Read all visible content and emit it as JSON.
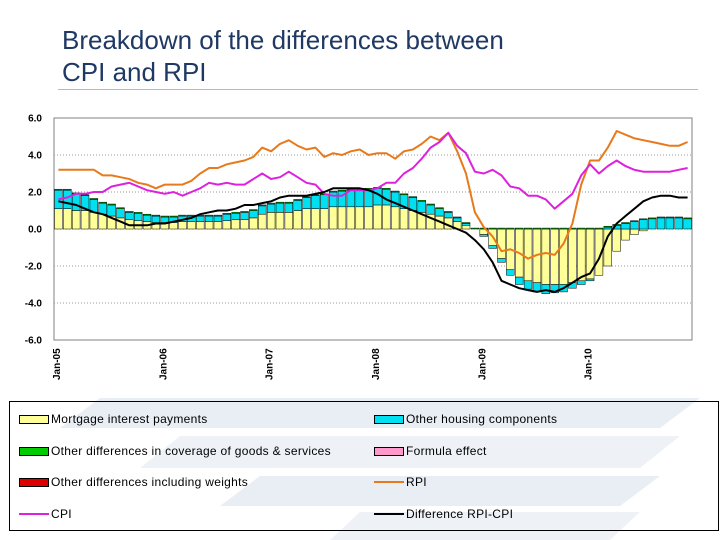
{
  "title": "Breakdown of the differences between CPI and RPI",
  "title_lines": [
    "Breakdown of the differences between",
    "CPI and RPI"
  ],
  "colors": {
    "title": "#1f3864",
    "mortgage": "#ffff99",
    "housing": "#00e0f0",
    "coverage": "#00cc00",
    "formula": "#ff99cc",
    "weights": "#dd0000",
    "rpi": "#e87a1c",
    "cpi": "#dd22dd",
    "diff": "#000000"
  },
  "chart_data": {
    "type": "bar",
    "stacked": true,
    "ylim": [
      -6.0,
      6.0
    ],
    "yticks": [
      "6.0",
      "4.0",
      "2.0",
      "0.0",
      "-2.0",
      "-4.0",
      "-6.0"
    ],
    "ytick_values": [
      6,
      4,
      2,
      0,
      -2,
      -4,
      -6
    ],
    "grid": "dotted horizontal",
    "xtick_labels": [
      "Jan-05",
      "Jan-06",
      "Jan-07",
      "Jan-08",
      "Jan-09",
      "Jan-10"
    ],
    "xtick_months": [
      0,
      12,
      24,
      36,
      48,
      60
    ],
    "months": 72,
    "bar_series": [
      {
        "name": "Mortgage interest payments",
        "key": "mortgage",
        "values": [
          1.1,
          1.1,
          1.0,
          1.0,
          0.9,
          0.8,
          0.7,
          0.6,
          0.5,
          0.45,
          0.4,
          0.35,
          0.35,
          0.35,
          0.4,
          0.4,
          0.4,
          0.4,
          0.4,
          0.45,
          0.5,
          0.5,
          0.6,
          0.8,
          0.9,
          0.9,
          0.9,
          1.0,
          1.1,
          1.1,
          1.1,
          1.2,
          1.2,
          1.2,
          1.2,
          1.2,
          1.3,
          1.3,
          1.2,
          1.1,
          1.0,
          0.9,
          0.8,
          0.7,
          0.6,
          0.4,
          0.2,
          0.0,
          -0.3,
          -0.9,
          -1.6,
          -2.2,
          -2.6,
          -2.8,
          -2.9,
          -3.0,
          -3.0,
          -3.0,
          -2.9,
          -2.8,
          -2.7,
          -2.5,
          -2.0,
          -1.2,
          -0.6,
          -0.3,
          -0.1,
          0.0,
          0.0,
          0.0,
          0.0,
          0.0
        ]
      },
      {
        "name": "Other housing components",
        "key": "housing",
        "values": [
          1.0,
          1.0,
          0.9,
          0.8,
          0.7,
          0.6,
          0.6,
          0.5,
          0.4,
          0.4,
          0.35,
          0.35,
          0.3,
          0.3,
          0.3,
          0.3,
          0.3,
          0.3,
          0.3,
          0.35,
          0.35,
          0.4,
          0.4,
          0.45,
          0.45,
          0.5,
          0.5,
          0.55,
          0.6,
          0.7,
          0.75,
          0.8,
          0.85,
          0.9,
          0.95,
          0.95,
          0.9,
          0.85,
          0.8,
          0.75,
          0.7,
          0.6,
          0.5,
          0.4,
          0.3,
          0.2,
          0.1,
          0.0,
          -0.1,
          -0.15,
          -0.2,
          -0.3,
          -0.4,
          -0.45,
          -0.5,
          -0.5,
          -0.45,
          -0.4,
          -0.3,
          -0.2,
          -0.1,
          0.0,
          0.1,
          0.2,
          0.3,
          0.4,
          0.5,
          0.55,
          0.6,
          0.6,
          0.6,
          0.55
        ]
      },
      {
        "name": "Other  differences in coverage of goods & services",
        "key": "coverage",
        "values": [
          0.05,
          0.05,
          0.05,
          0.05,
          0.05,
          0.05,
          0.05,
          0.05,
          0.05,
          0.05,
          0.05,
          0.05,
          0.05,
          0.05,
          0.05,
          0.05,
          0.05,
          0.05,
          0.05,
          0.05,
          0.05,
          0.05,
          0.05,
          0.05,
          0.05,
          0.05,
          0.05,
          0.05,
          0.05,
          0.05,
          0.05,
          0.05,
          0.05,
          0.05,
          0.05,
          0.05,
          0.05,
          0.05,
          0.05,
          0.05,
          0.05,
          0.05,
          0.05,
          0.05,
          0.05,
          0.05,
          0.05,
          0.05,
          0.05,
          0.05,
          0.05,
          0.05,
          0.05,
          0.05,
          0.05,
          0.05,
          0.05,
          0.05,
          0.05,
          0.05,
          0.05,
          0.05,
          0.05,
          0.05,
          0.05,
          0.05,
          0.05,
          0.05,
          0.05,
          0.05,
          0.05,
          0.05
        ]
      },
      {
        "name": "Formula effect",
        "key": "formula",
        "values": [
          0,
          0,
          0,
          0,
          0,
          0,
          0,
          0,
          0,
          0,
          0,
          0,
          0,
          0,
          0,
          0,
          0,
          0,
          0,
          0,
          0,
          0,
          0,
          0,
          0,
          0,
          0,
          0,
          0,
          0,
          0,
          0,
          0,
          0,
          0,
          0,
          0,
          0,
          0,
          0,
          0,
          0,
          0,
          0,
          0,
          0,
          0,
          0,
          0,
          0,
          0,
          0,
          0,
          0,
          0,
          0,
          0,
          0,
          0,
          0,
          0,
          0,
          0,
          0,
          0,
          0,
          0,
          0,
          0,
          0,
          0,
          0
        ]
      },
      {
        "name": "Other differences including weights",
        "key": "weights",
        "values": [
          0,
          0,
          0,
          0,
          0,
          0,
          0,
          0,
          0,
          0,
          0,
          0,
          0,
          0,
          0,
          0,
          0,
          0,
          0,
          0,
          0,
          0,
          0,
          0,
          0,
          0,
          0,
          0,
          0,
          0,
          0,
          0,
          0,
          0,
          0,
          0,
          0,
          0,
          0,
          0,
          0,
          0,
          0,
          0,
          0,
          0,
          0,
          0,
          0,
          0,
          0,
          0,
          0,
          0,
          0,
          0,
          0,
          0,
          0,
          0,
          0,
          0,
          0,
          0,
          0,
          0,
          0,
          0,
          0,
          0,
          0,
          0
        ]
      }
    ],
    "line_series": [
      {
        "name": "RPI",
        "key": "rpi",
        "values": [
          3.2,
          3.2,
          3.2,
          3.2,
          3.2,
          2.9,
          2.9,
          2.8,
          2.7,
          2.5,
          2.4,
          2.2,
          2.4,
          2.4,
          2.4,
          2.6,
          3.0,
          3.3,
          3.3,
          3.5,
          3.6,
          3.7,
          3.9,
          4.4,
          4.2,
          4.6,
          4.8,
          4.5,
          4.3,
          4.4,
          3.9,
          4.1,
          4.0,
          4.2,
          4.3,
          4.0,
          4.1,
          4.1,
          3.8,
          4.2,
          4.3,
          4.6,
          5.0,
          4.8,
          5.2,
          4.2,
          3.0,
          0.9,
          0.1,
          -0.4,
          -1.2,
          -1.1,
          -1.3,
          -1.6,
          -1.4,
          -1.3,
          -1.4,
          -0.8,
          0.3,
          2.4,
          3.7,
          3.7,
          4.4,
          5.3,
          5.1,
          4.9,
          4.8,
          4.7,
          4.6,
          4.5,
          4.5,
          4.7
        ]
      },
      {
        "name": "CPI",
        "key": "cpi",
        "values": [
          1.6,
          1.7,
          1.9,
          1.9,
          2.0,
          2.0,
          2.3,
          2.4,
          2.5,
          2.3,
          2.1,
          2.0,
          1.9,
          2.0,
          1.8,
          2.0,
          2.2,
          2.5,
          2.4,
          2.5,
          2.4,
          2.4,
          2.7,
          3.0,
          2.7,
          2.8,
          3.1,
          2.8,
          2.5,
          2.4,
          1.9,
          1.8,
          1.8,
          2.1,
          2.1,
          2.1,
          2.2,
          2.5,
          2.5,
          3.0,
          3.3,
          3.8,
          4.4,
          4.7,
          5.2,
          4.5,
          4.1,
          3.1,
          3.0,
          3.2,
          2.9,
          2.3,
          2.2,
          1.8,
          1.8,
          1.6,
          1.1,
          1.5,
          1.9,
          2.9,
          3.5,
          3.0,
          3.4,
          3.7,
          3.4,
          3.2,
          3.1,
          3.1,
          3.1,
          3.1,
          3.2,
          3.3
        ]
      },
      {
        "name": "Difference RPI-CPI",
        "key": "diff",
        "values": [
          1.5,
          1.4,
          1.3,
          1.1,
          0.9,
          0.8,
          0.6,
          0.4,
          0.2,
          0.2,
          0.2,
          0.3,
          0.3,
          0.4,
          0.5,
          0.6,
          0.8,
          0.9,
          1.0,
          1.0,
          1.1,
          1.3,
          1.3,
          1.4,
          1.5,
          1.7,
          1.8,
          1.8,
          1.8,
          1.9,
          2.0,
          2.2,
          2.2,
          2.2,
          2.2,
          2.1,
          1.9,
          1.6,
          1.4,
          1.2,
          1.0,
          0.8,
          0.6,
          0.4,
          0.2,
          0.0,
          -0.2,
          -0.6,
          -1.1,
          -1.8,
          -2.8,
          -3.0,
          -3.2,
          -3.3,
          -3.4,
          -3.3,
          -3.4,
          -3.2,
          -2.9,
          -2.6,
          -2.4,
          -1.6,
          -0.4,
          0.3,
          0.7,
          1.1,
          1.5,
          1.7,
          1.8,
          1.8,
          1.7,
          1.7
        ]
      }
    ]
  },
  "legend": [
    {
      "label": "Mortgage interest payments",
      "key": "mortgage",
      "kind": "box"
    },
    {
      "label": "Other housing components",
      "key": "housing",
      "kind": "box"
    },
    {
      "label": "Other  differences in coverage of goods & services",
      "key": "coverage",
      "kind": "box"
    },
    {
      "label": "Formula effect",
      "key": "formula",
      "kind": "box"
    },
    {
      "label": "Other differences including weights",
      "key": "weights",
      "kind": "box"
    },
    {
      "label": "RPI",
      "key": "rpi",
      "kind": "line"
    },
    {
      "label": "CPI",
      "key": "cpi",
      "kind": "line"
    },
    {
      "label": "Difference RPI-CPI",
      "key": "diff",
      "kind": "line"
    }
  ]
}
